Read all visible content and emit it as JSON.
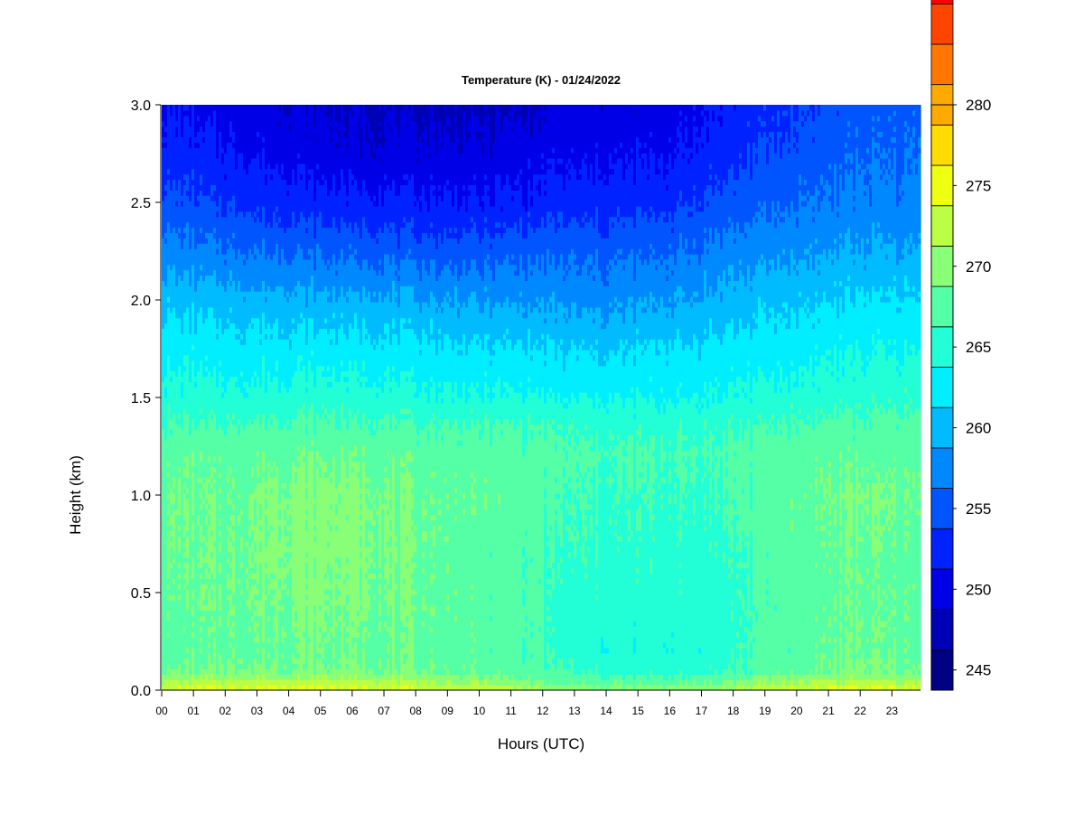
{
  "chart_data": {
    "type": "heatmap",
    "title": "Temperature (K) - 01/24/2022",
    "xlabel": "Hours (UTC)",
    "ylabel": "Height (km)",
    "x_ticks": [
      "00",
      "01",
      "02",
      "03",
      "04",
      "05",
      "06",
      "07",
      "08",
      "09",
      "10",
      "11",
      "12",
      "13",
      "14",
      "15",
      "16",
      "17",
      "18",
      "19",
      "20",
      "21",
      "22",
      "23"
    ],
    "x_range": [
      0,
      23.9
    ],
    "y_ticks": [
      "0.0",
      "0.5",
      "1.0",
      "1.5",
      "2.0",
      "2.5",
      "3.0"
    ],
    "y_range": [
      0.0,
      3.0
    ],
    "colorbar": {
      "ticks": [
        "245",
        "250",
        "255",
        "260",
        "265",
        "270",
        "275",
        "280"
      ],
      "range": [
        243.75,
        280
      ],
      "level_step": 2.5,
      "colors": [
        "#000082",
        "#0000b4",
        "#0000e6",
        "#0022ff",
        "#0055ff",
        "#0088ff",
        "#00bbff",
        "#00eeff",
        "#22ffd6",
        "#55ffa6",
        "#88ff77",
        "#bbff44",
        "#eeff11",
        "#ffdd00",
        "#ffaa00",
        "#ff7700",
        "#ff4400",
        "#ff0000",
        "#c80000",
        "#800000"
      ]
    },
    "x_hours": [
      0,
      2,
      4,
      6,
      8,
      10,
      11.9,
      12.1,
      14,
      16,
      17.5,
      19,
      20.5,
      22,
      23.9
    ],
    "heights_km": [
      0.0,
      0.05,
      0.1,
      0.2,
      0.4,
      0.7,
      1.0,
      1.2,
      1.35,
      1.5,
      1.75,
      2.0,
      2.25,
      2.5,
      2.75,
      3.0
    ],
    "temperature_K": [
      [
        274.0,
        274.5,
        275.0,
        275.0,
        274.0,
        273.0,
        271.5,
        270.0,
        270.0,
        270.0,
        271.5,
        273.0,
        274.5,
        275.0,
        274.0
      ],
      [
        271.0,
        271.5,
        272.0,
        272.0,
        271.0,
        270.0,
        269.0,
        268.0,
        267.5,
        267.5,
        268.0,
        270.0,
        271.0,
        271.5,
        271.0
      ],
      [
        268.5,
        269.0,
        269.0,
        269.0,
        268.5,
        268.0,
        267.5,
        266.5,
        265.5,
        265.0,
        265.5,
        267.5,
        268.5,
        269.0,
        268.5
      ],
      [
        267.5,
        268.0,
        268.5,
        268.5,
        268.0,
        267.5,
        267.0,
        265.5,
        264.5,
        264.5,
        265.0,
        267.0,
        268.0,
        268.5,
        268.0
      ],
      [
        268.0,
        268.5,
        269.0,
        269.0,
        268.5,
        267.5,
        267.0,
        265.5,
        265.0,
        265.0,
        265.0,
        267.0,
        268.0,
        268.5,
        268.0
      ],
      [
        268.5,
        268.5,
        269.5,
        269.5,
        268.5,
        267.5,
        267.0,
        266.0,
        265.5,
        265.5,
        265.5,
        267.0,
        268.0,
        268.5,
        268.0
      ],
      [
        268.5,
        268.5,
        269.5,
        269.5,
        268.5,
        268.0,
        267.5,
        266.5,
        266.0,
        266.0,
        266.0,
        267.5,
        268.5,
        269.0,
        268.5
      ],
      [
        268.0,
        268.0,
        268.5,
        268.5,
        268.0,
        267.5,
        267.5,
        267.0,
        266.5,
        266.5,
        266.5,
        267.5,
        268.0,
        268.0,
        268.0
      ],
      [
        266.5,
        266.5,
        267.0,
        267.0,
        266.5,
        266.5,
        266.5,
        266.0,
        265.5,
        265.5,
        266.0,
        266.5,
        267.0,
        267.0,
        267.0
      ],
      [
        265.0,
        264.5,
        265.0,
        265.0,
        264.5,
        264.0,
        264.0,
        263.5,
        263.5,
        263.5,
        264.0,
        264.5,
        265.0,
        265.5,
        265.5
      ],
      [
        263.0,
        262.5,
        262.5,
        262.5,
        262.0,
        261.5,
        261.5,
        261.0,
        261.0,
        261.5,
        262.0,
        262.5,
        263.0,
        263.5,
        263.5
      ],
      [
        260.5,
        260.0,
        259.5,
        259.5,
        259.0,
        258.5,
        258.5,
        258.0,
        258.0,
        258.5,
        259.5,
        260.5,
        261.0,
        261.5,
        261.5
      ],
      [
        257.5,
        256.5,
        256.0,
        255.5,
        255.0,
        255.0,
        255.5,
        255.5,
        255.5,
        256.0,
        257.0,
        258.0,
        258.5,
        259.0,
        259.0
      ],
      [
        254.5,
        253.5,
        252.5,
        252.0,
        251.5,
        251.5,
        252.0,
        252.5,
        252.5,
        253.0,
        254.5,
        255.5,
        256.5,
        257.0,
        257.0
      ],
      [
        252.5,
        251.5,
        250.5,
        249.5,
        249.5,
        249.5,
        250.0,
        250.5,
        250.5,
        251.0,
        252.5,
        254.0,
        255.0,
        256.0,
        256.0
      ],
      [
        251.0,
        250.0,
        249.0,
        248.5,
        248.0,
        248.0,
        248.5,
        249.5,
        249.5,
        250.0,
        251.5,
        253.0,
        254.0,
        255.0,
        255.5
      ]
    ]
  }
}
